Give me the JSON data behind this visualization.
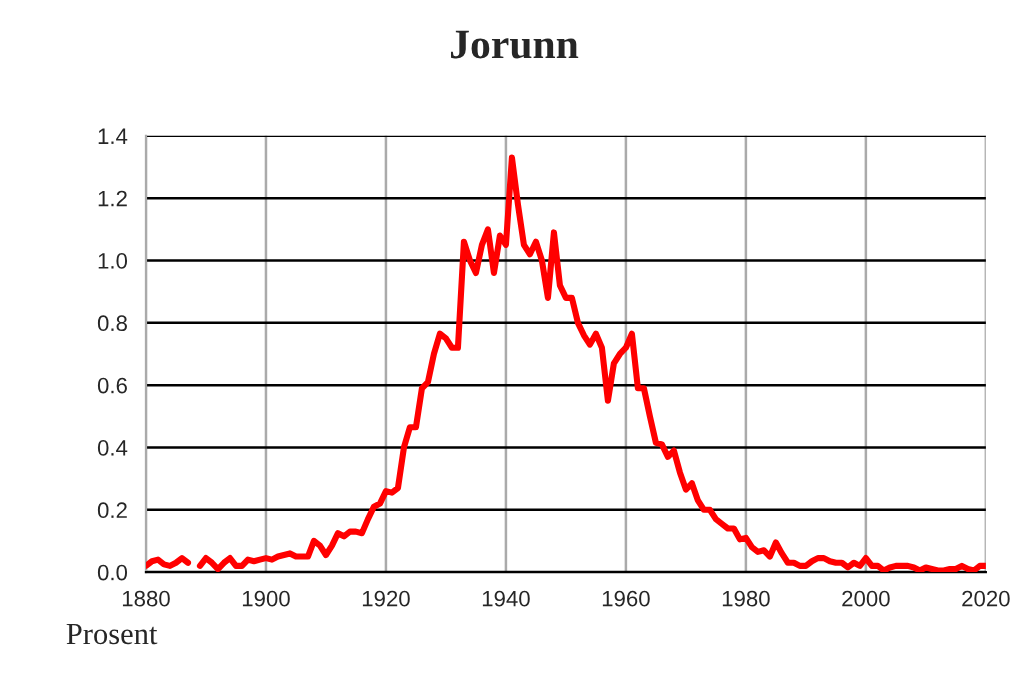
{
  "chart_data": {
    "type": "line",
    "title": "Jorunn",
    "annotations": [
      "Prosent"
    ],
    "x": [
      1880,
      1881,
      1882,
      1883,
      1884,
      1885,
      1886,
      1887,
      1888,
      1889,
      1890,
      1891,
      1892,
      1893,
      1894,
      1895,
      1896,
      1897,
      1898,
      1899,
      1900,
      1901,
      1902,
      1903,
      1904,
      1905,
      1906,
      1907,
      1908,
      1909,
      1910,
      1911,
      1912,
      1913,
      1914,
      1915,
      1916,
      1917,
      1918,
      1919,
      1920,
      1921,
      1922,
      1923,
      1924,
      1925,
      1926,
      1927,
      1928,
      1929,
      1930,
      1931,
      1932,
      1933,
      1934,
      1935,
      1936,
      1937,
      1938,
      1939,
      1940,
      1941,
      1942,
      1943,
      1944,
      1945,
      1946,
      1947,
      1948,
      1949,
      1950,
      1951,
      1952,
      1953,
      1954,
      1955,
      1956,
      1957,
      1958,
      1959,
      1960,
      1961,
      1962,
      1963,
      1964,
      1965,
      1966,
      1967,
      1968,
      1969,
      1970,
      1971,
      1972,
      1973,
      1974,
      1975,
      1976,
      1977,
      1978,
      1979,
      1980,
      1981,
      1982,
      1983,
      1984,
      1985,
      1986,
      1987,
      1988,
      1989,
      1990,
      1991,
      1992,
      1993,
      1994,
      1995,
      1996,
      1997,
      1998,
      1999,
      2000,
      2001,
      2002,
      2003,
      2004,
      2005,
      2006,
      2007,
      2008,
      2009,
      2010,
      2011,
      2012,
      2013,
      2014,
      2015,
      2016,
      2017,
      2018,
      2019,
      2020
    ],
    "series": [
      {
        "color": "#ff0000",
        "values": [
          0.02,
          0.035,
          0.04,
          0.025,
          0.02,
          0.03,
          0.045,
          0.03,
          null,
          0.02,
          0.045,
          0.03,
          0.01,
          0.03,
          0.045,
          0.02,
          0.02,
          0.04,
          0.035,
          0.04,
          0.045,
          0.04,
          0.05,
          0.055,
          0.06,
          0.05,
          0.05,
          0.05,
          0.1,
          0.085,
          0.055,
          0.085,
          0.125,
          0.115,
          0.13,
          0.13,
          0.125,
          0.17,
          0.21,
          0.22,
          0.26,
          0.255,
          0.27,
          0.4,
          0.465,
          0.465,
          0.59,
          0.61,
          0.7,
          0.765,
          0.75,
          0.72,
          0.72,
          1.06,
          1.0,
          0.96,
          1.05,
          1.1,
          0.96,
          1.08,
          1.05,
          1.33,
          1.18,
          1.05,
          1.02,
          1.06,
          1.0,
          0.88,
          1.09,
          0.92,
          0.88,
          0.88,
          0.8,
          0.76,
          0.73,
          0.765,
          0.72,
          0.55,
          0.67,
          0.7,
          0.72,
          0.765,
          0.59,
          0.59,
          0.5,
          0.415,
          0.41,
          0.37,
          0.39,
          0.32,
          0.265,
          0.285,
          0.23,
          0.2,
          0.2,
          0.17,
          0.155,
          0.14,
          0.14,
          0.105,
          0.11,
          0.08,
          0.065,
          0.07,
          0.05,
          0.095,
          0.06,
          0.03,
          0.03,
          0.02,
          0.02,
          0.035,
          0.045,
          0.045,
          0.035,
          0.03,
          0.03,
          0.015,
          0.03,
          0.02,
          0.045,
          0.02,
          0.02,
          0.005,
          0.015,
          0.02,
          0.02,
          0.02,
          0.015,
          0.005,
          0.015,
          0.01,
          0.005,
          0.005,
          0.01,
          0.01,
          0.02,
          0.01,
          0.005,
          0.02,
          0.02
        ]
      }
    ],
    "xlim": [
      1880,
      2020
    ],
    "xticks": [
      1880,
      1900,
      1920,
      1940,
      1960,
      1980,
      2000,
      2020
    ],
    "ylim": [
      0,
      1.4
    ],
    "yticks": [
      {
        "value": 0,
        "label": "0.0"
      },
      {
        "value": 0.2,
        "label": "0.2"
      },
      {
        "value": 0.4,
        "label": "0.4"
      },
      {
        "value": 0.6,
        "label": "0.6"
      },
      {
        "value": 0.8,
        "label": "0.8"
      },
      {
        "value": 1.0,
        "label": "1.0"
      },
      {
        "value": 1.2,
        "label": "1.2"
      },
      {
        "value": 1.4,
        "label": "1.4"
      }
    ],
    "grid": true,
    "legend": false
  }
}
